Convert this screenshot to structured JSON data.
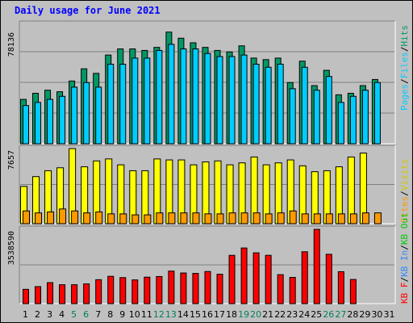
{
  "title": "Daily usage for June 2021",
  "colors": {
    "hits": "#009966",
    "files": "#00ccff",
    "pages": "#00ccff",
    "visits": "#ffff00",
    "sites": "#ff9900",
    "kb_in": "#3388ff",
    "kb_out": "#00cc00",
    "kb_f": "#ff0000",
    "weekend_day": "#00805e",
    "title_color": "#0000ff"
  },
  "chart_data": [
    {
      "type": "bar",
      "panel": "hits-files-pages",
      "max_label": "78136",
      "side_labels": [
        "Pages",
        "Files",
        "Hits"
      ],
      "ylim": [
        0,
        78136
      ],
      "x": [
        1,
        2,
        3,
        4,
        5,
        6,
        7,
        8,
        9,
        10,
        11,
        12,
        13,
        14,
        15,
        16,
        17,
        18,
        19,
        20,
        21,
        22,
        23,
        24,
        25,
        26,
        27,
        28,
        29,
        30,
        31
      ],
      "series": [
        {
          "name": "Hits",
          "values": [
            29000,
            33000,
            35000,
            34000,
            41000,
            49000,
            46000,
            58000,
            62000,
            62000,
            61000,
            63000,
            73000,
            69000,
            66000,
            63000,
            61000,
            60000,
            64000,
            56000,
            55000,
            56000,
            40000,
            54000,
            38000,
            48000,
            32000,
            33000,
            38000,
            42000,
            0
          ]
        },
        {
          "name": "Files",
          "values": [
            25000,
            27000,
            29000,
            31000,
            37000,
            40000,
            37000,
            52000,
            52000,
            56000,
            56000,
            61000,
            65000,
            62000,
            62000,
            59000,
            57000,
            57000,
            58000,
            52000,
            50000,
            52000,
            36000,
            50000,
            35000,
            44000,
            27000,
            31000,
            35000,
            40000,
            0
          ]
        },
        {
          "name": "Pages",
          "values": [
            25000,
            27000,
            29000,
            31000,
            37000,
            40000,
            37000,
            52000,
            52000,
            56000,
            56000,
            61000,
            65000,
            62000,
            62000,
            59000,
            57000,
            57000,
            58000,
            52000,
            50000,
            52000,
            36000,
            50000,
            35000,
            44000,
            27000,
            31000,
            35000,
            40000,
            0
          ]
        }
      ]
    },
    {
      "type": "bar",
      "panel": "visits-sites",
      "max_label": "7657",
      "side_labels": [
        "Sites",
        "Visits"
      ],
      "ylim": [
        0,
        7657
      ],
      "x": [
        1,
        2,
        3,
        4,
        5,
        6,
        7,
        8,
        9,
        10,
        11,
        12,
        13,
        14,
        15,
        16,
        17,
        18,
        19,
        20,
        21,
        22,
        23,
        24,
        25,
        26,
        27,
        28,
        29,
        30,
        31
      ],
      "series": [
        {
          "name": "Visits",
          "values": [
            3800,
            4800,
            5400,
            5700,
            7657,
            5800,
            6400,
            6600,
            6000,
            5400,
            5400,
            6600,
            6500,
            6500,
            6000,
            6300,
            6400,
            6000,
            6200,
            6800,
            6000,
            6200,
            6500,
            5900,
            5300,
            5400,
            5800,
            6800,
            7200,
            0,
            0
          ]
        },
        {
          "name": "Sites",
          "values": [
            1300,
            1100,
            1200,
            1500,
            1300,
            1100,
            1200,
            1000,
            1000,
            900,
            900,
            1100,
            1100,
            1100,
            1100,
            1000,
            1000,
            1100,
            1100,
            1100,
            1000,
            1100,
            1300,
            1000,
            1000,
            1000,
            1000,
            1000,
            1100,
            1100,
            0
          ]
        }
      ]
    },
    {
      "type": "bar",
      "panel": "kbytes",
      "max_label": "3538590",
      "side_labels": [
        "KB F",
        "KB In",
        "KB Out"
      ],
      "ylim": [
        0,
        3538590
      ],
      "x": [
        1,
        2,
        3,
        4,
        5,
        6,
        7,
        8,
        9,
        10,
        11,
        12,
        13,
        14,
        15,
        16,
        17,
        18,
        19,
        20,
        21,
        22,
        23,
        24,
        25,
        26,
        27,
        28,
        29,
        30,
        31
      ],
      "series": [
        {
          "name": "KB F",
          "values": [
            680000,
            810000,
            1000000,
            900000,
            900000,
            940000,
            1140000,
            1300000,
            1240000,
            1130000,
            1260000,
            1290000,
            1550000,
            1460000,
            1440000,
            1530000,
            1400000,
            2300000,
            2650000,
            2420000,
            2300000,
            1380000,
            1250000,
            2470000,
            3538590,
            2350000,
            1520000,
            1150000,
            0,
            0,
            0
          ]
        }
      ]
    },
    {
      "type": "bar",
      "panel": "x-axis",
      "categories": [
        "1",
        "2",
        "3",
        "4",
        "5",
        "6",
        "7",
        "8",
        "9",
        "10",
        "11",
        "12",
        "13",
        "14",
        "15",
        "16",
        "17",
        "18",
        "19",
        "20",
        "21",
        "22",
        "23",
        "24",
        "25",
        "26",
        "27",
        "28",
        "29",
        "30",
        "31"
      ],
      "weekend_days": [
        "5",
        "6",
        "12",
        "13",
        "19",
        "20",
        "26",
        "27"
      ]
    }
  ]
}
